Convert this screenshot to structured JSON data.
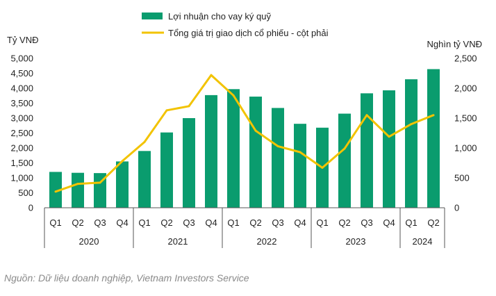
{
  "chart_data": {
    "type": "bar+line",
    "colors": {
      "bar": "#0a9c6e",
      "line": "#f2c300",
      "axis": "#555555",
      "text": "#222222",
      "source": "#8a8a8a"
    },
    "legend": {
      "bar_label": "Lợi nhuận cho vay ký quỹ",
      "line_label": "Tổng giá trị giao dịch cổ phiếu - cột phải",
      "placement": "top-center"
    },
    "y_left": {
      "unit": "Tỷ VNĐ",
      "min": 0,
      "max": 5000,
      "ticks": [
        "0",
        "500",
        "1,000",
        "1,500",
        "2,000",
        "2,500",
        "3,000",
        "3,500",
        "4,000",
        "4,500",
        "5,000"
      ]
    },
    "y_right": {
      "unit": "Nghìn tỷ VNĐ",
      "min": 0,
      "max": 2500,
      "ticks": [
        "0",
        "500",
        "1,000",
        "1,500",
        "2,000",
        "2,500"
      ]
    },
    "categories": [
      "Q1",
      "Q2",
      "Q3",
      "Q4",
      "Q1",
      "Q2",
      "Q3",
      "Q4",
      "Q1",
      "Q2",
      "Q3",
      "Q4",
      "Q1",
      "Q2",
      "Q3",
      "Q4",
      "Q1",
      "Q2"
    ],
    "groups": [
      {
        "label": "2020",
        "count": 4
      },
      {
        "label": "2021",
        "count": 4
      },
      {
        "label": "2022",
        "count": 4
      },
      {
        "label": "2023",
        "count": 4
      },
      {
        "label": "2024",
        "count": 2
      }
    ],
    "series": [
      {
        "name": "Lợi nhuận cho vay ký quỹ",
        "type": "bar",
        "axis": "left",
        "values": [
          1200,
          1170,
          1160,
          1550,
          1900,
          2520,
          3000,
          3770,
          3970,
          3720,
          3340,
          2810,
          2680,
          3150,
          3830,
          3930,
          4300,
          4640
        ]
      },
      {
        "name": "Tổng giá trị giao dịch cổ phiếu - cột phải",
        "type": "line",
        "axis": "right",
        "values": [
          270,
          400,
          420,
          780,
          1100,
          1630,
          1700,
          2220,
          1880,
          1290,
          1030,
          930,
          670,
          990,
          1550,
          1190,
          1400,
          1550
        ]
      }
    ],
    "grid": false,
    "source_note": "Nguồn: Dữ liệu doanh nghiệp, Vietnam Investors Service"
  }
}
